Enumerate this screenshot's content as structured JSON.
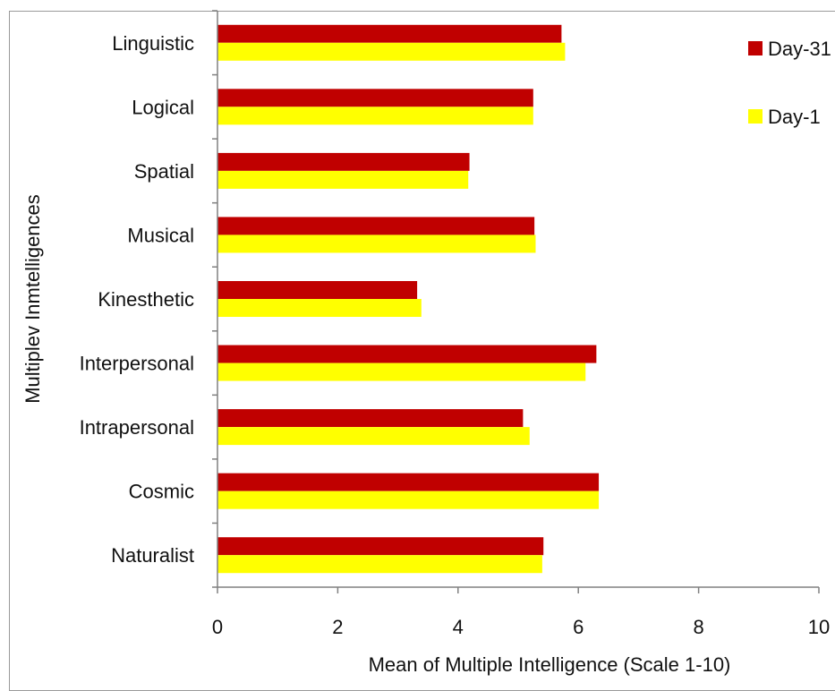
{
  "chart_data": {
    "type": "bar",
    "orientation": "horizontal",
    "categories": [
      "Linguistic",
      "Logical",
      "Spatial",
      "Musical",
      "Kinesthetic",
      "Interpersonal",
      "Intrapersonal",
      "Cosmic",
      "Naturalist"
    ],
    "series": [
      {
        "name": "Day-31",
        "color": "#c00000",
        "values": [
          5.72,
          5.25,
          4.19,
          5.27,
          3.32,
          6.3,
          5.08,
          6.34,
          5.42
        ]
      },
      {
        "name": "Day-1",
        "color": "#ffff00",
        "values": [
          5.78,
          5.25,
          4.17,
          5.29,
          3.39,
          6.12,
          5.19,
          6.34,
          5.4
        ]
      }
    ],
    "xlabel": "Mean of Multiple Intelligence (Scale 1-10)",
    "ylabel": "Multiplev Inmtelligences",
    "xlim": [
      0,
      10
    ],
    "xticks": [
      0,
      2,
      4,
      6,
      8,
      10
    ],
    "grid": false,
    "legend_position": "top-right"
  }
}
